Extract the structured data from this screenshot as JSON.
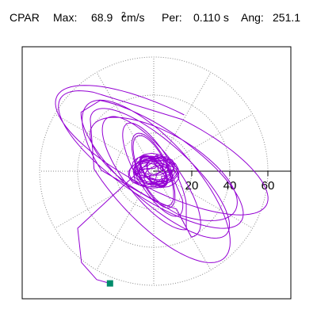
{
  "header": {
    "component": "CPAR",
    "max_label": "Max:",
    "max_value": "68.9",
    "max_unit": "cm/s",
    "max_unit_exp": "2",
    "period_label": "Per:",
    "period_value": "0.110 s",
    "angle_label": "Ang:",
    "angle_value": "251.1"
  },
  "colors": {
    "trace": "#9400d3",
    "marker": "#008b6b",
    "grid": "#888888",
    "axis": "#000000"
  },
  "chart_data": {
    "type": "scatter",
    "title": "",
    "xlabel": "",
    "ylabel": "",
    "grid": true,
    "grid_style": "polar-dotted",
    "ring_radii": [
      20,
      40,
      60
    ],
    "tick_labels": [
      "20",
      "40",
      "60"
    ],
    "xlim": [
      -70,
      72
    ],
    "ylim": [
      -65,
      65
    ],
    "series": [
      {
        "type": "orbit",
        "values": [
          {
            "a": 22,
            "b": 66,
            "tilt": 63,
            "cx": 6,
            "cy": 10,
            "turns": 1
          },
          {
            "a": 20,
            "b": 60,
            "tilt": 56,
            "cx": 0,
            "cy": 5,
            "turns": 1
          },
          {
            "a": 17,
            "b": 52,
            "tilt": 48,
            "cx": 2,
            "cy": 0,
            "turns": 1
          },
          {
            "a": 22,
            "b": 58,
            "tilt": 42,
            "cx": 0,
            "cy": -4,
            "turns": 1
          },
          {
            "a": 19,
            "b": 46,
            "tilt": 60,
            "cx": 4,
            "cy": 2,
            "turns": 1
          },
          {
            "a": 14,
            "b": 40,
            "tilt": 38,
            "cx": -2,
            "cy": -2,
            "turns": 1
          },
          {
            "a": 10,
            "b": 30,
            "tilt": 30,
            "cx": 0,
            "cy": 0,
            "turns": 1
          },
          {
            "a": 8,
            "b": 22,
            "tilt": 25,
            "cx": 0,
            "cy": 0,
            "turns": 2
          },
          {
            "a": 5,
            "b": 10,
            "tilt": 40,
            "cx": 0,
            "cy": 0,
            "turns": 4
          }
        ]
      }
    ],
    "end_marker": {
      "x": -23,
      "y": -59
    }
  }
}
